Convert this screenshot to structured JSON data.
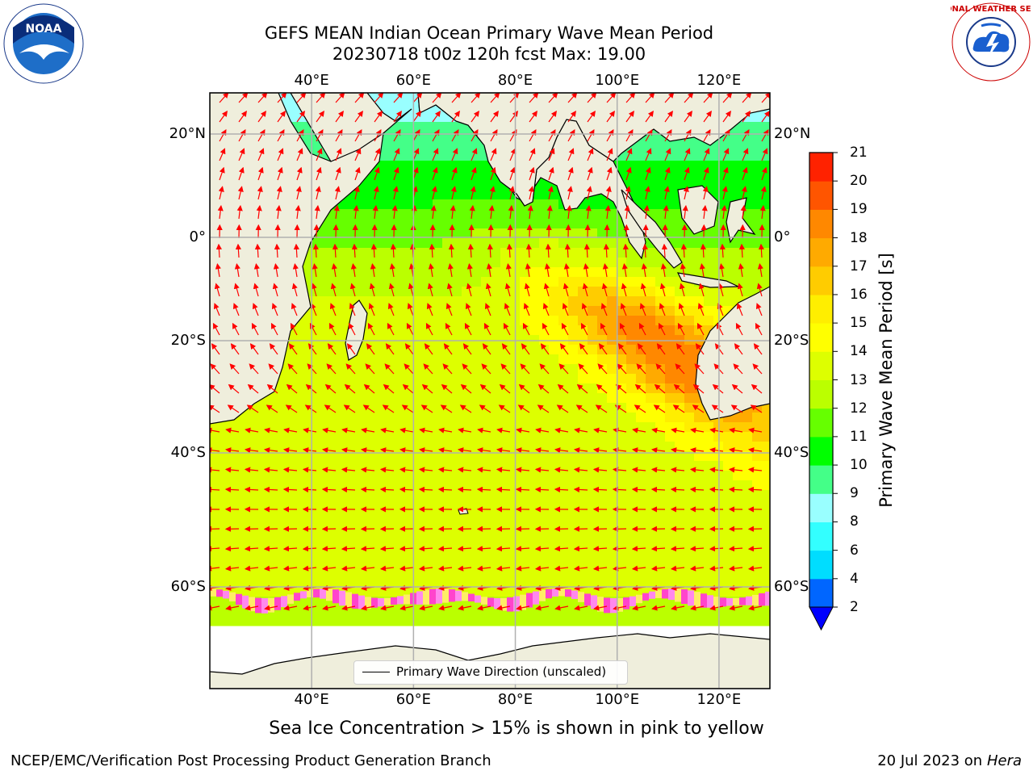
{
  "header": {
    "title_line1": "GEFS MEAN Indian Ocean Primary Wave Mean Period",
    "title_line2": "20230718 t00z 120h fcst   Max: 19.00"
  },
  "logos": {
    "left": {
      "icon": "noaa-logo",
      "text": "NOAA"
    },
    "right": {
      "icon": "nws-logo",
      "text": "NATIONAL WEATHER SERVICE"
    }
  },
  "map": {
    "lon_labels": [
      "40°E",
      "60°E",
      "80°E",
      "100°E",
      "120°E"
    ],
    "lat_labels": [
      "20°N",
      "0°",
      "20°S",
      "40°S",
      "60°S"
    ],
    "lon_range": [
      20,
      130
    ],
    "lat_range": [
      -78,
      28
    ],
    "gridlines": true,
    "ocean_color": "#ffffff",
    "land_color": "#efeedc",
    "arrow_color": "#ff0000",
    "legend": {
      "entry": "Primary Wave Direction (unscaled)",
      "position": "lower-center"
    }
  },
  "colorbar": {
    "title": "Primary Wave Mean Period [s]",
    "tick_labels": [
      "2",
      "4",
      "6",
      "8",
      "9",
      "10",
      "11",
      "12",
      "13",
      "14",
      "15",
      "16",
      "17",
      "18",
      "19",
      "20",
      "21"
    ],
    "colors": [
      "#0066ff",
      "#00ddff",
      "#33ffff",
      "#99ffff",
      "#44ff88",
      "#00ff00",
      "#66ff00",
      "#bbff00",
      "#ddff00",
      "#ffff00",
      "#ffee00",
      "#ffcc00",
      "#ffaa00",
      "#ff8800",
      "#ff5500",
      "#ff2200",
      "#ff0000"
    ],
    "under_color": "#0000ff",
    "extend": "min"
  },
  "captions": {
    "sea_ice": "Sea Ice Concentration > 15% is shown in pink to yellow",
    "footer_left": "NCEP/EMC/Verification Post Processing Product Generation Branch",
    "footer_date": "20 Jul 2023 on ",
    "footer_host": "Hera"
  }
}
